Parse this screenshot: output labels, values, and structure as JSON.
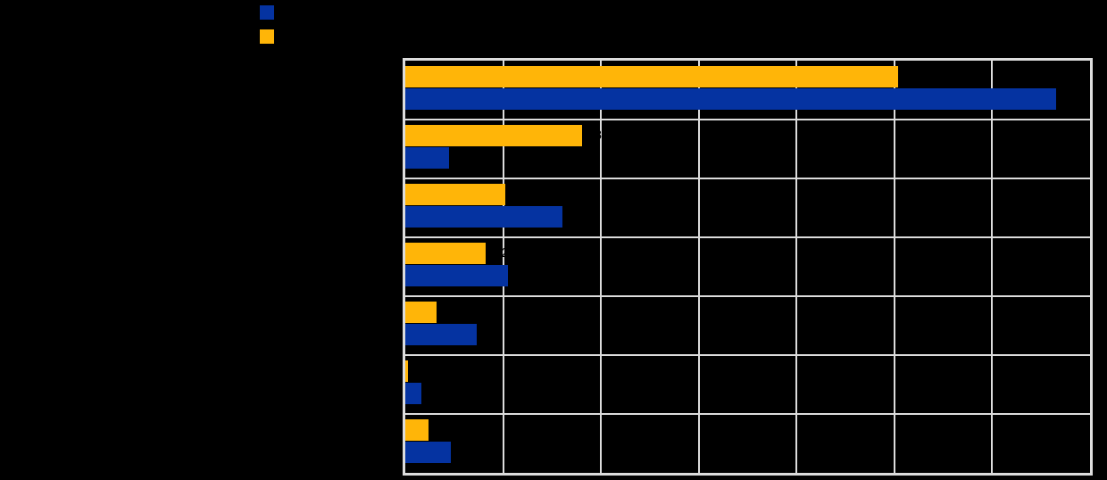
{
  "window": {
    "background_color": "#000000",
    "text_color": "#000000"
  },
  "legend": {
    "position": "top-left",
    "items": [
      {
        "label": "",
        "color": "#0533A1"
      },
      {
        "label": "",
        "color": "#FFB508"
      }
    ]
  },
  "chart_data": {
    "type": "bar",
    "orientation": "horizontal",
    "title": "",
    "xlabel": "",
    "ylabel": "",
    "xlim": [
      0,
      70
    ],
    "gridline_step": 10,
    "grid": true,
    "legend_position": "top-left",
    "categories": [
      "",
      "",
      "",
      "",
      "",
      "",
      ""
    ],
    "series": [
      {
        "name": "",
        "color": "#0533A1",
        "values": [
          66.5,
          4.5,
          16.1,
          10.5,
          7.3,
          1.6,
          4.7
        ]
      },
      {
        "name": "",
        "color": "#FFB508",
        "values": [
          50.4,
          18.1,
          10.2,
          8.2,
          3.2,
          0.3,
          2.4
        ]
      }
    ]
  },
  "style": {
    "gridline_color": "#DCDCDC",
    "plot_border_color": "#DCDCDC",
    "bar_row_order": "series2-above-series1",
    "value_label_color": "#000000"
  }
}
